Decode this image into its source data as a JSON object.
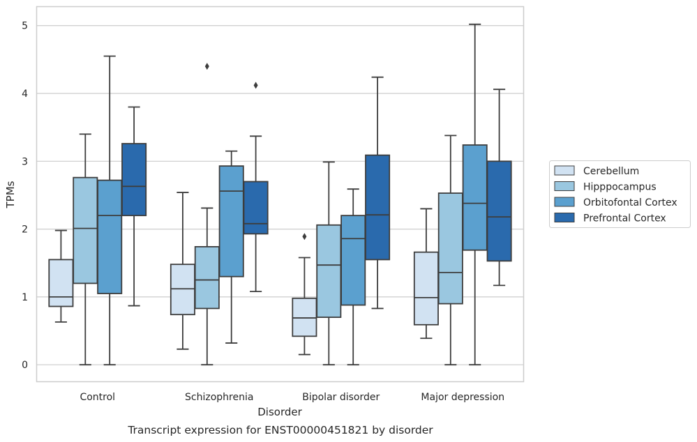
{
  "caption": "Transcript expression for ENST00000451821 by disorder",
  "chart_data": {
    "type": "boxplot",
    "xlabel": "Disorder",
    "ylabel": "TPMs",
    "ylim": [
      -0.25,
      5.28
    ],
    "yticks": [
      0,
      1,
      2,
      3,
      4,
      5
    ],
    "grid": "horizontal",
    "legend_position": "right",
    "categories": [
      "Control",
      "Schizophrenia",
      "Bipolar disorder",
      "Major depression"
    ],
    "series": [
      {
        "name": "Cerebellum",
        "color": "#d1e2f2",
        "boxes": [
          {
            "whislo": 0.63,
            "q1": 0.86,
            "med": 1.0,
            "q3": 1.55,
            "whishi": 1.98,
            "fliers": []
          },
          {
            "whislo": 0.23,
            "q1": 0.74,
            "med": 1.12,
            "q3": 1.48,
            "whishi": 2.54,
            "fliers": []
          },
          {
            "whislo": 0.15,
            "q1": 0.42,
            "med": 0.69,
            "q3": 0.98,
            "whishi": 1.58,
            "fliers": [
              1.89
            ]
          },
          {
            "whislo": 0.39,
            "q1": 0.59,
            "med": 0.99,
            "q3": 1.66,
            "whishi": 2.3,
            "fliers": []
          }
        ]
      },
      {
        "name": "Hipppocampus",
        "color": "#9ac7e0",
        "boxes": [
          {
            "whislo": 0.0,
            "q1": 1.2,
            "med": 2.01,
            "q3": 2.76,
            "whishi": 3.4,
            "fliers": []
          },
          {
            "whislo": 0.0,
            "q1": 0.83,
            "med": 1.25,
            "q3": 1.74,
            "whishi": 2.31,
            "fliers": [
              4.4
            ]
          },
          {
            "whislo": 0.0,
            "q1": 0.7,
            "med": 1.47,
            "q3": 2.06,
            "whishi": 2.99,
            "fliers": []
          },
          {
            "whislo": 0.0,
            "q1": 0.9,
            "med": 1.36,
            "q3": 2.53,
            "whishi": 3.38,
            "fliers": []
          }
        ]
      },
      {
        "name": "Orbitofontal Cortex",
        "color": "#5ba0cf",
        "boxes": [
          {
            "whislo": 0.0,
            "q1": 1.05,
            "med": 2.2,
            "q3": 2.72,
            "whishi": 4.55,
            "fliers": []
          },
          {
            "whislo": 0.32,
            "q1": 1.3,
            "med": 2.56,
            "q3": 2.93,
            "whishi": 3.15,
            "fliers": []
          },
          {
            "whislo": 0.0,
            "q1": 0.88,
            "med": 1.86,
            "q3": 2.2,
            "whishi": 2.59,
            "fliers": []
          },
          {
            "whislo": 0.0,
            "q1": 1.69,
            "med": 2.38,
            "q3": 3.24,
            "whishi": 5.02,
            "fliers": []
          }
        ]
      },
      {
        "name": "Prefrontal Cortex",
        "color": "#2a6aad",
        "boxes": [
          {
            "whislo": 0.87,
            "q1": 2.2,
            "med": 2.63,
            "q3": 3.26,
            "whishi": 3.8,
            "fliers": []
          },
          {
            "whislo": 1.08,
            "q1": 1.93,
            "med": 2.08,
            "q3": 2.7,
            "whishi": 3.37,
            "fliers": [
              4.12
            ]
          },
          {
            "whislo": 0.83,
            "q1": 1.55,
            "med": 2.21,
            "q3": 3.09,
            "whishi": 4.24,
            "fliers": []
          },
          {
            "whislo": 1.17,
            "q1": 1.53,
            "med": 2.18,
            "q3": 3.0,
            "whishi": 4.06,
            "fliers": []
          }
        ]
      }
    ]
  }
}
